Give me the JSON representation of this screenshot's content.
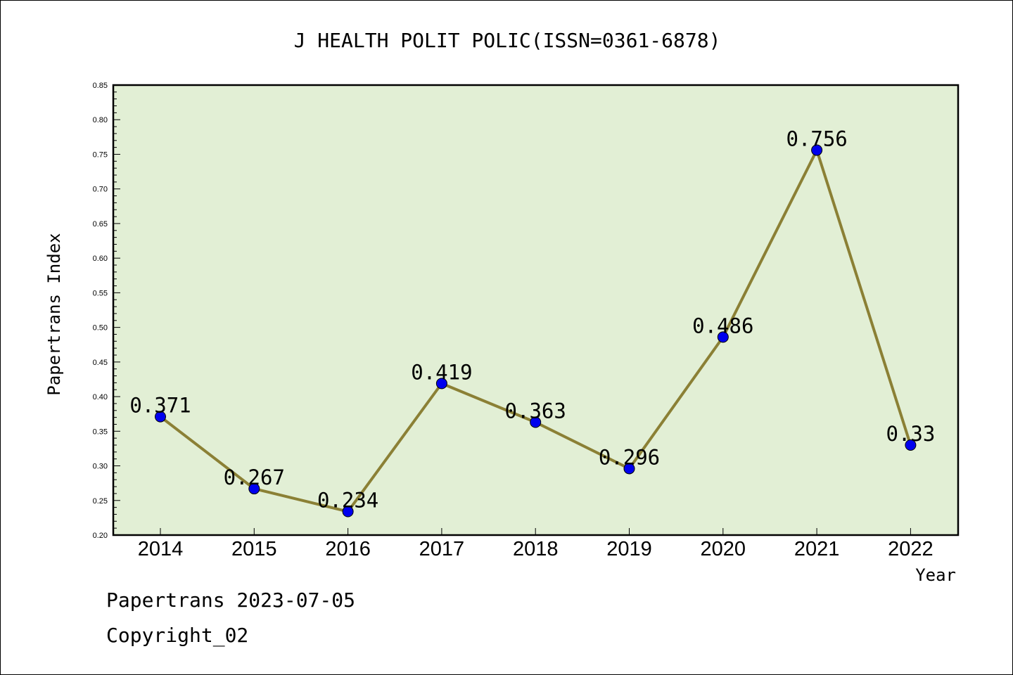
{
  "chart_data": {
    "type": "line",
    "title": "J HEALTH POLIT POLIC(ISSN=0361-6878)",
    "xlabel": "Year",
    "ylabel": "Papertrans Index",
    "categories": [
      "2014",
      "2015",
      "2016",
      "2017",
      "2018",
      "2019",
      "2020",
      "2021",
      "2022"
    ],
    "values": [
      0.371,
      0.267,
      0.234,
      0.419,
      0.363,
      0.296,
      0.486,
      0.756,
      0.33
    ],
    "data_labels": [
      "0.371",
      "0.267",
      "0.234",
      "0.419",
      "0.363",
      "0.296",
      "0.486",
      "0.756",
      "0.33"
    ],
    "ylim": [
      0.2,
      0.85
    ],
    "yticks": [
      "0.20",
      "0.25",
      "0.30",
      "0.35",
      "0.40",
      "0.45",
      "0.50",
      "0.55",
      "0.60",
      "0.65",
      "0.70",
      "0.75",
      "0.80",
      "0.85"
    ],
    "grid": false,
    "colors": {
      "plot_background": "#e2efd5",
      "line": "#8b8035",
      "marker": "#0000ee"
    }
  },
  "footer": {
    "line1": "Papertrans 2023-07-05",
    "line2": "Copyright_02"
  }
}
